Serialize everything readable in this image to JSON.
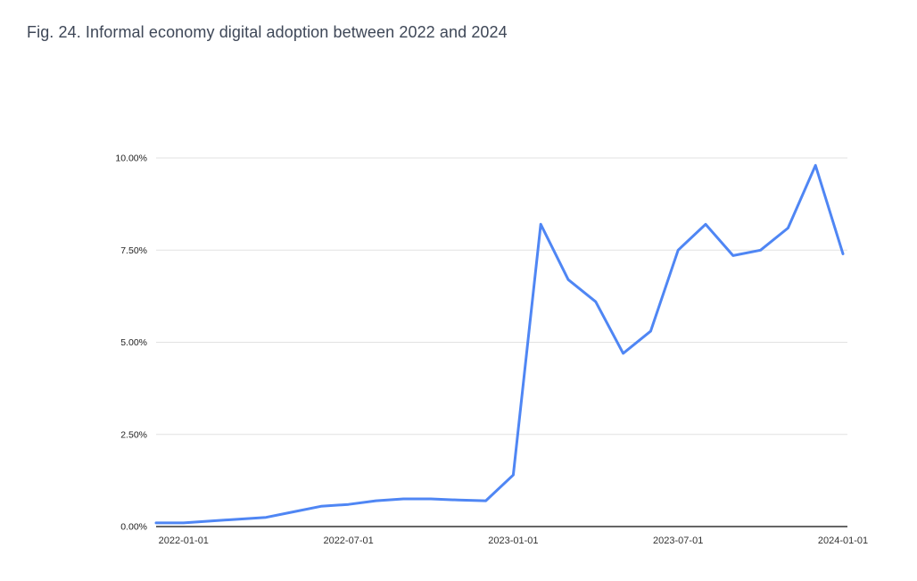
{
  "title": "Fig. 24. Informal economy digital adoption between 2022 and 2024",
  "chart_data": {
    "type": "line",
    "title": "Fig. 24. Informal economy digital adoption between 2022 and 2024",
    "xlabel": "",
    "ylabel": "",
    "ylim": [
      0,
      10
    ],
    "grid": true,
    "legend": "none",
    "line_color": "#4f86f4",
    "y_ticks": [
      {
        "value": 0,
        "label": "0.00%"
      },
      {
        "value": 2.5,
        "label": "2.50%"
      },
      {
        "value": 5,
        "label": "5.00%"
      },
      {
        "value": 7.5,
        "label": "7.50%"
      },
      {
        "value": 10,
        "label": "10.00%"
      }
    ],
    "x_ticks": [
      {
        "index": 1,
        "label": "2022-01-01"
      },
      {
        "index": 7,
        "label": "2022-07-01"
      },
      {
        "index": 13,
        "label": "2023-01-01"
      },
      {
        "index": 19,
        "label": "2023-07-01"
      },
      {
        "index": 25,
        "label": "2024-01-01"
      }
    ],
    "series": [
      {
        "name": "Informal economy digital adoption (%)",
        "x": [
          "2021-12-01",
          "2022-01-01",
          "2022-02-01",
          "2022-03-01",
          "2022-04-01",
          "2022-05-01",
          "2022-06-01",
          "2022-07-01",
          "2022-08-01",
          "2022-09-01",
          "2022-10-01",
          "2022-11-01",
          "2022-12-01",
          "2023-01-01",
          "2023-02-01",
          "2023-03-01",
          "2023-04-01",
          "2023-05-01",
          "2023-06-01",
          "2023-07-01",
          "2023-08-01",
          "2023-09-01",
          "2023-10-01",
          "2023-11-01",
          "2023-12-01",
          "2024-01-01"
        ],
        "values": [
          0.1,
          0.1,
          0.15,
          0.2,
          0.25,
          0.4,
          0.55,
          0.6,
          0.7,
          0.75,
          0.75,
          0.72,
          0.7,
          1.4,
          8.2,
          6.7,
          6.1,
          4.7,
          5.3,
          7.5,
          8.2,
          7.35,
          7.5,
          8.1,
          9.8,
          7.4
        ]
      }
    ]
  }
}
